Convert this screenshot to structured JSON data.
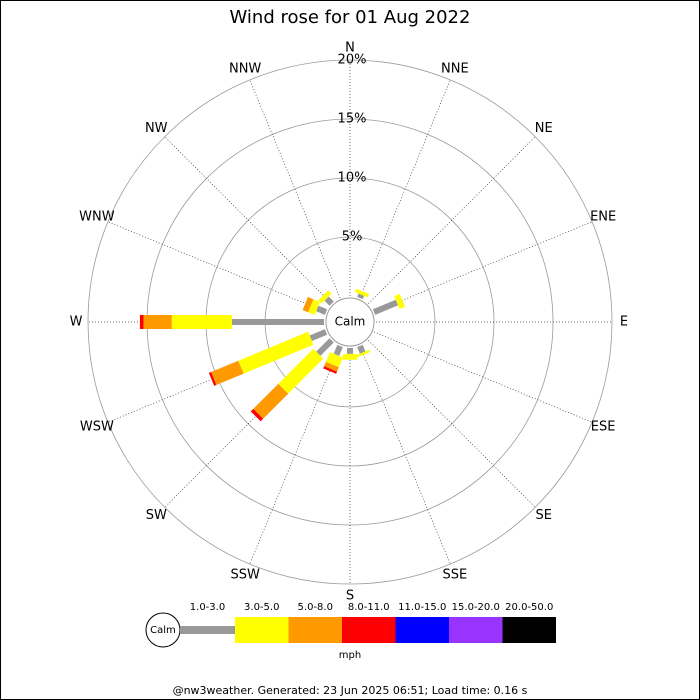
{
  "chart_data": {
    "type": "windrose",
    "title": "Wind rose for 01 Aug 2022",
    "calm_label": "Calm",
    "categories": [
      "N",
      "NNE",
      "NE",
      "ENE",
      "E",
      "ESE",
      "SE",
      "SSE",
      "S",
      "SSW",
      "SW",
      "WSW",
      "W",
      "WNW",
      "NW",
      "NNW"
    ],
    "series": [
      {
        "name": "1.0-3.0",
        "color": "#999999",
        "values": [
          0,
          0.3,
          0,
          2.1,
          0,
          0,
          0,
          0.6,
          0.5,
          0.8,
          1.6,
          1.4,
          7.8,
          0.8,
          0.6,
          0
        ]
      },
      {
        "name": "3.0-5.0",
        "color": "#ffff00",
        "values": [
          0,
          0.3,
          0,
          0.5,
          0,
          0,
          0,
          0.2,
          0.5,
          0.9,
          4.2,
          6.4,
          5.1,
          0.6,
          0.4,
          0
        ]
      },
      {
        "name": "5.0-8.0",
        "color": "#ff9900",
        "values": [
          0,
          0,
          0,
          0,
          0,
          0,
          0,
          0,
          0,
          0.4,
          3.0,
          2.5,
          2.4,
          0.5,
          0,
          0
        ]
      },
      {
        "name": "8.0-11.0",
        "color": "#ff0000",
        "values": [
          0,
          0,
          0,
          0,
          0,
          0,
          0,
          0,
          0,
          0.2,
          0.3,
          0.2,
          0.3,
          0,
          0,
          0
        ]
      },
      {
        "name": "11.0-15.0",
        "color": "#0000ff",
        "values": [
          0,
          0,
          0,
          0,
          0,
          0,
          0,
          0,
          0,
          0,
          0,
          0,
          0,
          0,
          0,
          0
        ]
      },
      {
        "name": "15.0-20.0",
        "color": "#9933ff",
        "values": [
          0,
          0,
          0,
          0,
          0,
          0,
          0,
          0,
          0,
          0,
          0,
          0,
          0,
          0,
          0,
          0
        ]
      },
      {
        "name": "20.0-50.0",
        "color": "#000000",
        "values": [
          0,
          0,
          0,
          0,
          0,
          0,
          0,
          0,
          0,
          0,
          0,
          0,
          0,
          0,
          0,
          0
        ]
      }
    ],
    "unit_label": "mph",
    "rlim": [
      0,
      20
    ],
    "rticks": [
      {
        "value": 5,
        "label": "5%"
      },
      {
        "value": 10,
        "label": "10%"
      },
      {
        "value": 15,
        "label": "15%"
      },
      {
        "value": 20,
        "label": "20%"
      }
    ],
    "footer": "@nw3weather. Generated: 23 Jun 2025 06:51; Load time: 0.16 s"
  }
}
